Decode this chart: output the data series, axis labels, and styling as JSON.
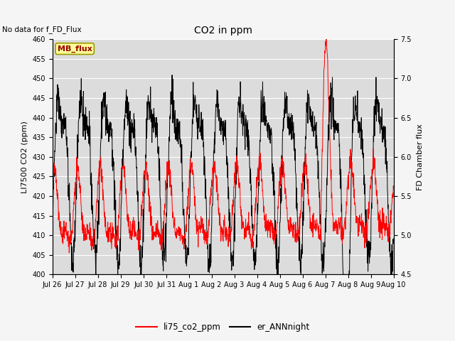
{
  "title": "CO2 in ppm",
  "note_text": "No data for f_FD_Flux",
  "ylabel_left": "LI7500 CO2 (ppm)",
  "ylabel_right": "FD Chamber flux",
  "ylim_left": [
    400,
    460
  ],
  "ylim_right": [
    4.5,
    7.5
  ],
  "yticks_left": [
    400,
    405,
    410,
    415,
    420,
    425,
    430,
    435,
    440,
    445,
    450,
    455,
    460
  ],
  "yticks_right": [
    4.5,
    5.0,
    5.5,
    6.0,
    6.5,
    7.0,
    7.5
  ],
  "bg_color": "#dcdcdc",
  "fig_bg_color": "#f5f5f5",
  "legend_label_red": "li75_co2_ppm",
  "legend_label_black": "er_ANNnight",
  "mb_flux_label": "MB_flux",
  "tick_labels": [
    "Jul 26",
    "Jul 27",
    "Jul 28",
    "Jul 29",
    "Jul 30",
    "Jul 31",
    "Aug 1",
    "Aug 2",
    "Aug 3",
    "Aug 4",
    "Aug 5",
    "Aug 6",
    "Aug 7",
    "Aug 8",
    "Aug 9Aug 10"
  ],
  "n_days": 15,
  "n_points": 1440,
  "red_seed": 7,
  "black_seed": 13,
  "red_base": 415,
  "red_amp1": 8,
  "red_amp2": 4,
  "red_noise": 1.5,
  "red_trend": 0.15,
  "black_base": 428,
  "black_amp1": 18,
  "black_amp2": 7,
  "black_noise": 2.5
}
